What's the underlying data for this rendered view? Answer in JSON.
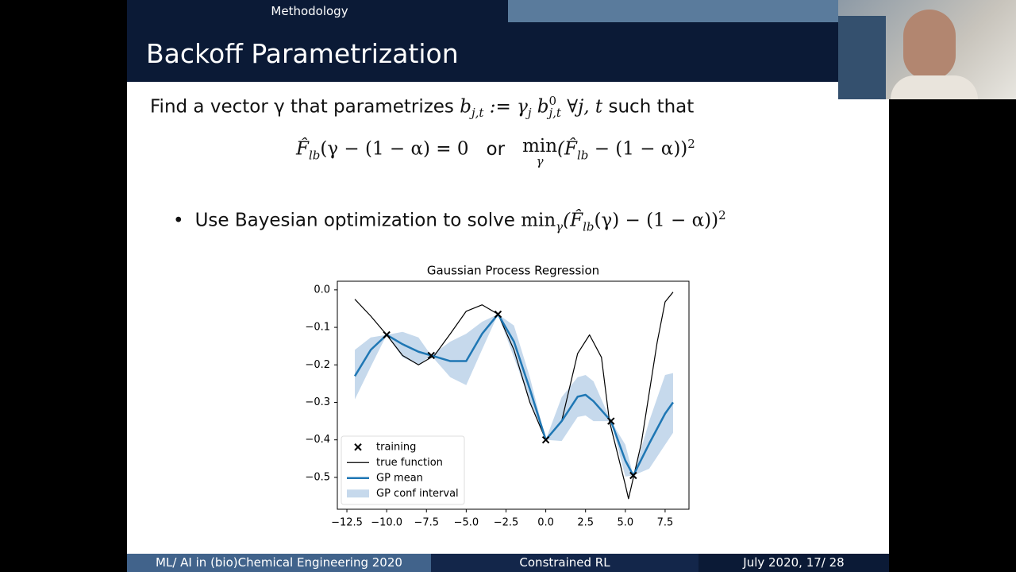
{
  "slide": {
    "section": "Methodology",
    "title": "Backoff Parametrization",
    "line1": [
      "Find a vector γ that parametrizes ",
      "b",
      "j,t",
      " := γ",
      "j",
      " b",
      "0",
      "j,t",
      " ∀j, t",
      " such that"
    ],
    "line2": [
      "F̂",
      "lb",
      "(γ − (1 − α) = 0",
      "or",
      "min",
      "γ",
      "(F̂",
      "lb",
      " − (1 − α))",
      "2"
    ],
    "bullet": [
      "Use Bayesian optimization to solve ",
      "min",
      "γ",
      "(F̂",
      "lb",
      "(γ) − (1 − α))",
      "2"
    ],
    "footer": [
      "ML/ AI in (bio)Chemical Engineering 2020",
      "Constrained RL",
      "July 2020,  17/ 28"
    ]
  },
  "chart_data": {
    "type": "line",
    "title": "Gaussian Process Regression",
    "xlim": [
      -13.1,
      9.0
    ],
    "ylim": [
      -0.585,
      0.023
    ],
    "xticks": [
      {
        "value": -12.5,
        "label": "−12.5"
      },
      {
        "value": -10,
        "label": "−10.0"
      },
      {
        "value": -7.5,
        "label": "−7.5"
      },
      {
        "value": -5,
        "label": "−5.0"
      },
      {
        "value": -2.5,
        "label": "−2.5"
      },
      {
        "value": 0,
        "label": "0.0"
      },
      2.5,
      {
        "value": 5,
        "label": "5.0"
      },
      7.5
    ],
    "yticks": [
      {
        "value": 0,
        "label": "0.0"
      },
      {
        "value": -0.1,
        "label": "−0.1"
      },
      {
        "value": -0.2,
        "label": "−0.2"
      },
      {
        "value": -0.3,
        "label": "−0.3"
      },
      {
        "value": -0.4,
        "label": "−0.4"
      },
      {
        "value": -0.5,
        "label": "−0.5"
      }
    ],
    "legend": "lower left",
    "series": [
      {
        "name": "training",
        "kind": "scatter",
        "color": "#000000",
        "x": [
          -10,
          -7.2,
          -3,
          0,
          4.1,
          5.5
        ],
        "values": [
          -0.12,
          -0.175,
          -0.065,
          -0.4,
          -0.35,
          -0.495
        ]
      },
      {
        "name": "true function",
        "kind": "line",
        "color": "#000000",
        "x": [
          -12,
          -11,
          -10,
          -9,
          -8,
          -7,
          -6,
          -5,
          -4,
          -3,
          -2,
          -1,
          0,
          1,
          2,
          2.75,
          3.5,
          4,
          5,
          5.2,
          6,
          7,
          7.5,
          8
        ],
        "values": [
          -0.025,
          -0.07,
          -0.12,
          -0.175,
          -0.2,
          -0.175,
          -0.117,
          -0.057,
          -0.04,
          -0.065,
          -0.16,
          -0.3,
          -0.4,
          -0.35,
          -0.17,
          -0.12,
          -0.18,
          -0.35,
          -0.52,
          -0.557,
          -0.41,
          -0.14,
          -0.032,
          -0.006
        ]
      },
      {
        "name": "GP mean",
        "kind": "line",
        "color": "#1f77b4",
        "x": [
          -12,
          -11,
          -10,
          -9,
          -8,
          -7.2,
          -6,
          -5,
          -4,
          -3,
          -2,
          -1,
          0,
          1,
          2,
          2.5,
          3,
          4.1,
          5,
          5.5,
          6.5,
          7.5,
          8
        ],
        "values": [
          -0.23,
          -0.16,
          -0.12,
          -0.145,
          -0.165,
          -0.175,
          -0.19,
          -0.19,
          -0.117,
          -0.065,
          -0.138,
          -0.265,
          -0.4,
          -0.35,
          -0.285,
          -0.28,
          -0.297,
          -0.35,
          -0.455,
          -0.495,
          -0.41,
          -0.33,
          -0.3
        ]
      },
      {
        "name": "GP conf interval",
        "kind": "band",
        "color": "#c6d9ec",
        "x": [
          -12,
          -11,
          -10,
          -9,
          -8,
          -7.2,
          -6,
          -5,
          -4,
          -3,
          -2,
          -1,
          0,
          1,
          2,
          2.5,
          3,
          4.1,
          5,
          5.5,
          6.5,
          7.5,
          8
        ],
        "upper": [
          -0.16,
          -0.127,
          -0.12,
          -0.112,
          -0.127,
          -0.175,
          -0.138,
          -0.117,
          -0.085,
          -0.065,
          -0.095,
          -0.233,
          -0.4,
          -0.286,
          -0.233,
          -0.227,
          -0.244,
          -0.35,
          -0.413,
          -0.495,
          -0.35,
          -0.227,
          -0.222
        ],
        "lower": [
          -0.292,
          -0.205,
          -0.12,
          -0.18,
          -0.2,
          -0.175,
          -0.233,
          -0.254,
          -0.159,
          -0.065,
          -0.18,
          -0.297,
          -0.4,
          -0.403,
          -0.339,
          -0.335,
          -0.35,
          -0.35,
          -0.498,
          -0.495,
          -0.477,
          -0.413,
          -0.381
        ]
      }
    ]
  }
}
